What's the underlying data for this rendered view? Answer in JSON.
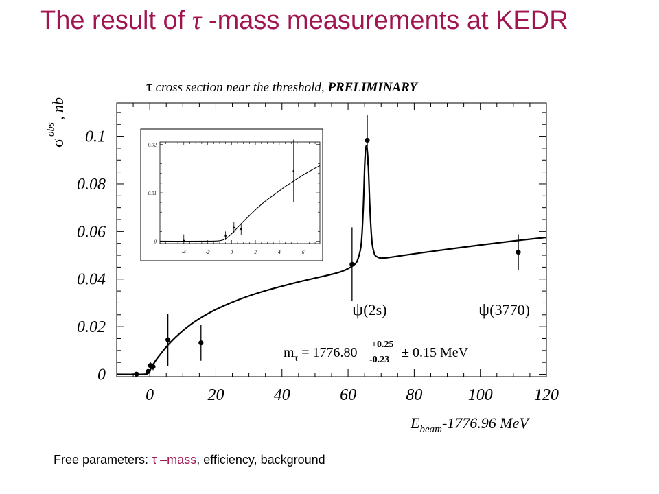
{
  "slide": {
    "title_prefix": "The result of ",
    "title_tau": "τ",
    "title_suffix": " -mass measurements at KEDR",
    "footer_prefix": "Free parameters: ",
    "footer_highlight": "τ –mass",
    "footer_suffix": ", efficiency, background",
    "accent_color": "#a0144f"
  },
  "chart_data": [
    {
      "type": "scatter",
      "title": "τ cross section near the threshold, PRELIMINARY",
      "title_tau": "τ",
      "title_rest": " cross section near the threshold, ",
      "title_bold": "PRELIMINARY",
      "xlabel_main": "E",
      "xlabel_sub": "beam",
      "xlabel_rest": "-1776.96 MeV",
      "ylabel_main": "σ",
      "ylabel_sup": "obs",
      "ylabel_rest": ", nb",
      "xlim": [
        -10,
        120
      ],
      "ylim": [
        -0.001,
        0.114
      ],
      "xticks": [
        0,
        20,
        40,
        60,
        80,
        100,
        120
      ],
      "xtick_labels": [
        "0",
        "20",
        "40",
        "60",
        "80",
        "100",
        "120"
      ],
      "yticks": [
        0,
        0.02,
        0.04,
        0.06,
        0.08,
        0.1
      ],
      "ytick_labels": [
        "0",
        "0.02",
        "0.04",
        "0.06",
        "0.08",
        "0.1"
      ],
      "grid": false,
      "points": [
        {
          "x": -4,
          "y": 0.0001,
          "err": 0.0007
        },
        {
          "x": -0.5,
          "y": 0.0012,
          "err": 0.001
        },
        {
          "x": 0.2,
          "y": 0.0037,
          "err": 0.0014
        },
        {
          "x": 1,
          "y": 0.0032,
          "err": 0.0014
        },
        {
          "x": 5.5,
          "y": 0.0145,
          "err": 0.011
        },
        {
          "x": 15.5,
          "y": 0.0132,
          "err": 0.0075
        },
        {
          "x": 61.2,
          "y": 0.0462,
          "err": 0.0155
        },
        {
          "x": 65.8,
          "y": 0.0983,
          "err": 0.0105
        },
        {
          "x": 111.5,
          "y": 0.0513,
          "err": 0.0075
        }
      ],
      "fit_curve": {
        "x": [
          -10,
          -2,
          -0.5,
          0,
          0.5,
          1,
          2,
          3,
          5,
          8,
          12,
          16,
          20,
          25,
          30,
          35,
          40,
          45,
          50,
          55,
          58,
          60,
          62,
          63,
          64,
          64.6,
          65.1,
          65.6,
          66.1,
          66.6,
          67.2,
          68,
          69,
          70,
          72,
          75,
          80,
          90,
          100,
          110,
          120
        ],
        "y": [
          0,
          0,
          0.0005,
          0.0015,
          0.0028,
          0.004,
          0.0062,
          0.008,
          0.0115,
          0.0158,
          0.0205,
          0.0242,
          0.0272,
          0.0303,
          0.0329,
          0.0351,
          0.037,
          0.0388,
          0.0404,
          0.042,
          0.0432,
          0.0444,
          0.0462,
          0.0485,
          0.055,
          0.07,
          0.09,
          0.096,
          0.088,
          0.07,
          0.056,
          0.0505,
          0.0492,
          0.0488,
          0.049,
          0.0496,
          0.0506,
          0.0525,
          0.0543,
          0.056,
          0.0575
        ]
      },
      "annotations": {
        "psi2s_greek": "ψ",
        "psi2s_rest": "(2s)",
        "psi3770_greek": "ψ",
        "psi3770_rest": "(3770)",
        "mass_label_m": "m",
        "mass_label_sub": "τ",
        "mass_label_eq": " = 1776.80",
        "mass_plus": "+0.25",
        "mass_minus": "-0.23",
        "mass_rest": " ± 0.15 MeV"
      }
    },
    {
      "type": "scatter",
      "title": "",
      "xlim": [
        -6,
        7.4
      ],
      "ylim": [
        -0.0005,
        0.0205
      ],
      "xticks": [
        -4,
        -2,
        0,
        2,
        4,
        6
      ],
      "xtick_labels": [
        "-4",
        "-2",
        "0",
        "2",
        "4",
        "6"
      ],
      "yticks": [
        0,
        0.01,
        0.02
      ],
      "ytick_labels": [
        "0",
        "0.01",
        "0.02"
      ],
      "grid": false,
      "points": [
        {
          "x": -4,
          "y": 0.0001,
          "err": 0.0013
        },
        {
          "x": -0.5,
          "y": 0.0011,
          "err": 0.0009
        },
        {
          "x": 0.2,
          "y": 0.0028,
          "err": 0.0011
        },
        {
          "x": 0.8,
          "y": 0.0025,
          "err": 0.0012
        },
        {
          "x": 5.2,
          "y": 0.0145,
          "err": 0.0065
        }
      ],
      "fit_curve": {
        "x": [
          -6,
          -2,
          -1,
          -0.5,
          0,
          0.5,
          1,
          1.5,
          2,
          2.5,
          3,
          3.5,
          4,
          4.5,
          5,
          5.5,
          6,
          6.5,
          7,
          7.4
        ],
        "y": [
          0,
          0,
          0.0001,
          0.0005,
          0.0015,
          0.0028,
          0.0041,
          0.0053,
          0.0065,
          0.0076,
          0.0086,
          0.0095,
          0.0104,
          0.0113,
          0.0121,
          0.0129,
          0.0137,
          0.0144,
          0.0151,
          0.0156
        ]
      }
    }
  ]
}
